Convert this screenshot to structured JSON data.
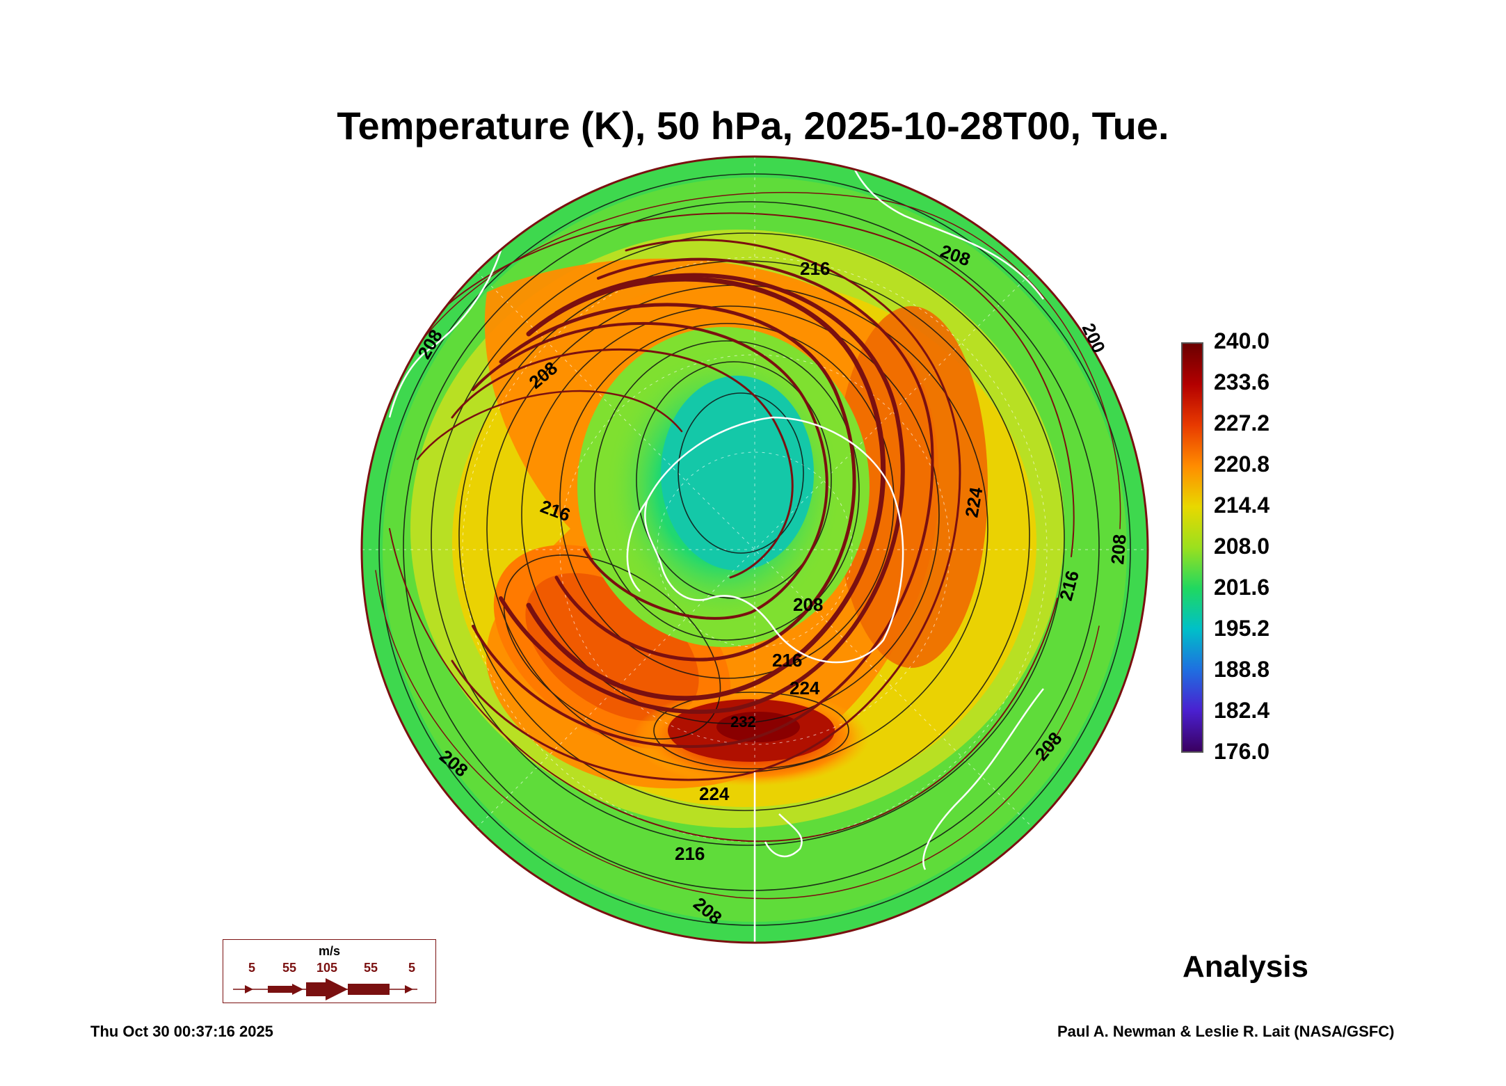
{
  "title": "Temperature (K), 50 hPa, 2025-10-28T00, Tue.",
  "colorbar": {
    "labels": [
      "240.0",
      "233.6",
      "227.2",
      "220.8",
      "214.4",
      "208.0",
      "201.6",
      "195.2",
      "188.8",
      "182.4",
      "176.0"
    ],
    "colors": [
      "#6b0000",
      "#b30000",
      "#e83a00",
      "#ff8c00",
      "#e8d800",
      "#9be01e",
      "#20d860",
      "#00c0c8",
      "#1f6fe0",
      "#4a20d0",
      "#3a0060"
    ]
  },
  "map": {
    "contour_labels": [
      "216",
      "208",
      "208",
      "216",
      "208",
      "216",
      "224",
      "224",
      "216",
      "208",
      "208",
      "224",
      "216",
      "208",
      "208",
      "200",
      "208",
      "232"
    ]
  },
  "wind_legend": {
    "unit": "m/s",
    "labels": [
      "5",
      "55",
      "105",
      "55",
      "5"
    ],
    "color": "#7a1010"
  },
  "analysis_label": "Analysis",
  "timestamp": "Thu Oct 30 00:37:16 2025",
  "credit": "Paul A. Newman & Leslie R. Lait (NASA/GSFC)"
}
